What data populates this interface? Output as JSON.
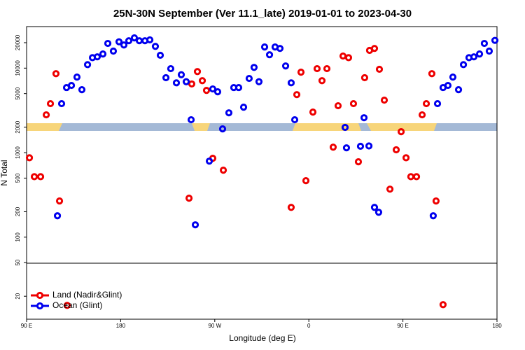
{
  "chart_data": {
    "type": "scatter",
    "title": "25N-30N September (Ver 11.1_late)   2019-01-01 to 2023-04-30",
    "x_label": "Longitude (deg E)",
    "y_label": "N Total",
    "log_y": true,
    "legend": "bottomleft",
    "xlim": [
      90,
      540
    ],
    "xticks": [
      {
        "value": 90,
        "label": "90 E"
      },
      180,
      {
        "value": 270,
        "label": "90 W"
      },
      {
        "value": 360,
        "label": "0"
      },
      {
        "value": 450,
        "label": "90 E"
      },
      {
        "value": 540,
        "label": "180"
      }
    ],
    "ylim": [
      10.7,
      31000
    ],
    "yticks": [
      20,
      50,
      100,
      200,
      500,
      1000,
      2000,
      5000,
      10000,
      20000
    ],
    "series": [
      {
        "name": "Land (Nadir&Glint)",
        "color": "#ee0000",
        "x": [
          92.7,
          97.4,
          103.4,
          108.8,
          112.8,
          118.1,
          121.5,
          128.8,
          245.4,
          248,
          253.4,
          258.1,
          262.1,
          268.1,
          278.2,
          343.1,
          348.5,
          352.5,
          357.2,
          363.9,
          367.9,
          372.6,
          377.3,
          383.3,
          388,
          392.7,
          398,
          402.7,
          407.4,
          413.4,
          418.1,
          422.8,
          427.5,
          432.2,
          437.6,
          443.6,
          448.3,
          453,
          457.6,
          463,
          468.4,
          472.4,
          477.7,
          481.7,
          488.4
        ],
        "values": [
          870,
          520,
          520,
          2800,
          3800,
          8600,
          268,
          15.6,
          289,
          6500,
          9100,
          7100,
          5450,
          857,
          620,
          225,
          4860,
          8950,
          466,
          3020,
          9860,
          7100,
          9860,
          1160,
          3590,
          13900,
          13300,
          3800,
          780,
          7700,
          16200,
          17100,
          9700,
          4180,
          370,
          1080,
          1770,
          870,
          520,
          520,
          2800,
          3800,
          8600,
          268,
          15.9
        ]
      },
      {
        "name": "Ocean (Glint)",
        "color": "#0000ee",
        "x": [
          119.5,
          123.5,
          128.2,
          132.9,
          138.2,
          142.9,
          148.3,
          153,
          157.6,
          163,
          167.7,
          173,
          178.4,
          183.1,
          187.8,
          193.1,
          197.8,
          203.2,
          207.9,
          213.2,
          217.9,
          223.3,
          227.9,
          233.3,
          238,
          242.7,
          247.4,
          251.4,
          264.8,
          268.1,
          272.8,
          277.5,
          283.5,
          288.2,
          292.9,
          297.6,
          302.9,
          307.6,
          312.3,
          317.7,
          322.4,
          327.7,
          332.4,
          337.8,
          343.1,
          346.5,
          394.7,
          396,
          409.4,
          412.8,
          417.5,
          422.8,
          426.8,
          479,
          483.1,
          488.4,
          493.1,
          497.8,
          503.2,
          507.9,
          513.2,
          517.9,
          523.3,
          527.9,
          532.6,
          538
        ],
        "values": [
          179,
          3800,
          5890,
          6240,
          7840,
          5560,
          11000,
          13300,
          13600,
          14700,
          19600,
          15900,
          20500,
          18800,
          21100,
          22800,
          21100,
          21100,
          21600,
          18100,
          14200,
          7700,
          9860,
          6700,
          8350,
          6900,
          2450,
          140,
          794,
          5670,
          5250,
          1910,
          2960,
          5890,
          5890,
          3450,
          7550,
          10200,
          6900,
          17800,
          14400,
          17800,
          17100,
          10600,
          6700,
          2450,
          1990,
          1140,
          1190,
          2590,
          1200,
          225,
          197,
          179,
          3800,
          5890,
          6240,
          7840,
          5560,
          11000,
          13300,
          13600,
          14700,
          19600,
          15900,
          21300
        ]
      }
    ]
  }
}
